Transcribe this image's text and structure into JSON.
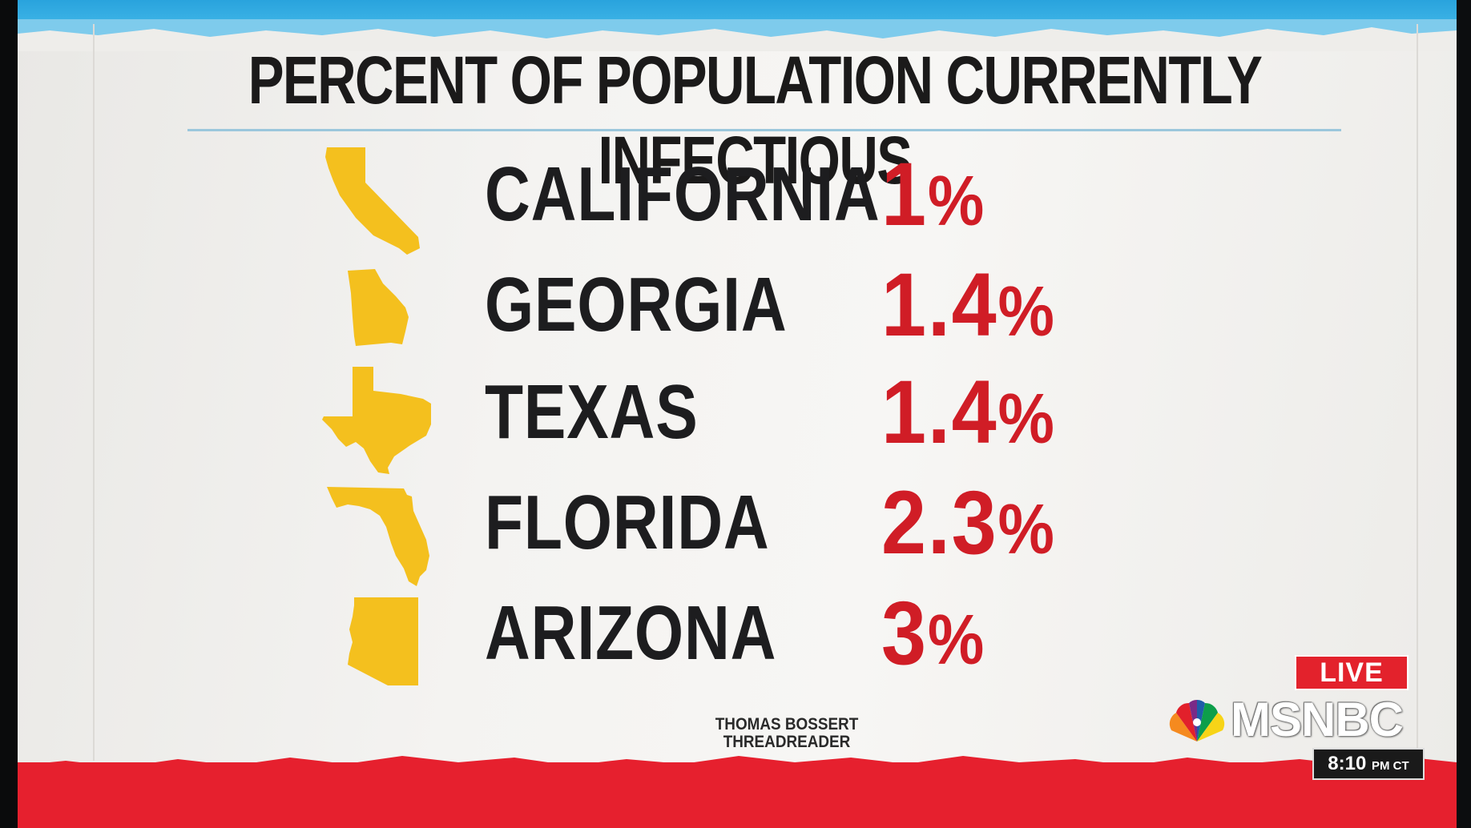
{
  "graphic": {
    "title": "PERCENT OF POPULATION CURRENTLY INFECTIOUS",
    "rows": [
      {
        "state": "CALIFORNIA",
        "value": "1",
        "sign": "%"
      },
      {
        "state": "GEORGIA",
        "value": "1.4",
        "sign": "%"
      },
      {
        "state": "TEXAS",
        "value": "1.4",
        "sign": "%"
      },
      {
        "state": "FLORIDA",
        "value": "2.3",
        "sign": "%"
      },
      {
        "state": "ARIZONA",
        "value": "3",
        "sign": "%"
      }
    ],
    "source_line1": "THOMAS BOSSERT",
    "source_line2": "THREADREADER"
  },
  "broadcast": {
    "live_label": "LIVE",
    "network": "MSNBC",
    "time": "8:10",
    "ampm": "PM CT"
  },
  "colors": {
    "accent_red": "#d01d26",
    "state_fill": "#f4c01e",
    "top_band": "#29a3dd",
    "bottom_band": "#e6202e"
  },
  "icons": [
    "california-shape-icon",
    "georgia-shape-icon",
    "texas-shape-icon",
    "florida-shape-icon",
    "arizona-shape-icon",
    "peacock-icon"
  ]
}
